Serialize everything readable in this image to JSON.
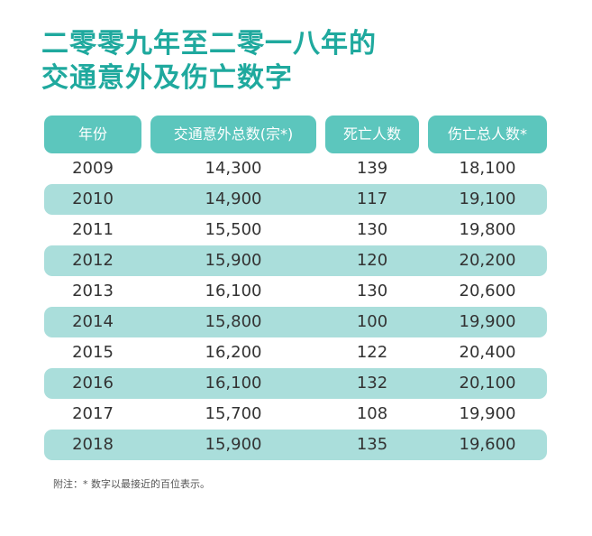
{
  "title": {
    "line1": "二零零九年至二零一八年的",
    "line2": "交通意外及伤亡数字"
  },
  "table": {
    "headers": [
      "年份",
      "交通意外总数(宗*)",
      "死亡人数",
      "伤亡总人数*"
    ],
    "rows": [
      [
        "2009",
        "14,300",
        "139",
        "18,100"
      ],
      [
        "2010",
        "14,900",
        "117",
        "19,100"
      ],
      [
        "2011",
        "15,500",
        "130",
        "19,800"
      ],
      [
        "2012",
        "15,900",
        "120",
        "20,200"
      ],
      [
        "2013",
        "16,100",
        "130",
        "20,600"
      ],
      [
        "2014",
        "15,800",
        "100",
        "19,900"
      ],
      [
        "2015",
        "16,200",
        "122",
        "20,400"
      ],
      [
        "2016",
        "16,100",
        "132",
        "20,100"
      ],
      [
        "2017",
        "15,700",
        "108",
        "19,900"
      ],
      [
        "2018",
        "15,900",
        "135",
        "19,600"
      ]
    ]
  },
  "note": "附注：* 数字以最接近的百位表示。",
  "colors": {
    "title": "#1fa99e",
    "header_bg": "#5cc6bd",
    "row_shade": "#aadedb"
  }
}
